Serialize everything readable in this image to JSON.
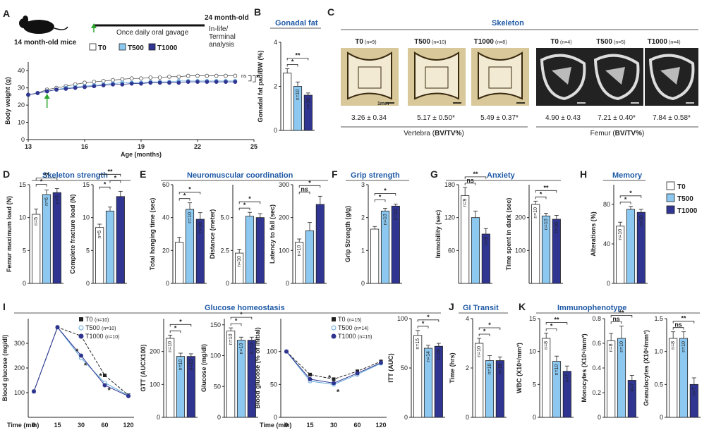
{
  "colors": {
    "T0": "#ffffff",
    "T500": "#8cc8ef",
    "T1000": "#2f3590",
    "title": "#1f5aa6",
    "sig_red": "#d8262b"
  },
  "panels": {
    "A": {
      "letter": "A",
      "mice_label": "14 month-old mice",
      "endpoint": "24 month-old",
      "gavage": "Once daily oral gavage",
      "terminal": "In-life/\nTerminal\nanalysis",
      "legend": [
        "T0",
        "T500",
        "T1000"
      ],
      "chart_data": {
        "type": "line",
        "xlabel": "Age (months)",
        "ylabel": "Body weight (g)",
        "xlim": [
          13,
          25
        ],
        "ylim": [
          0,
          45
        ],
        "xticks": [
          13,
          16,
          19,
          22,
          25
        ],
        "yticks": [
          0,
          10,
          20,
          30,
          40
        ],
        "series": [
          {
            "name": "T0",
            "x": [
              13,
              13.5,
              14,
              14.5,
              15,
              15.5,
              16,
              16.5,
              17,
              17.5,
              18,
              18.5,
              19,
              19.5,
              20,
              20.5,
              21,
              21.5,
              22,
              22.5,
              23,
              23.5,
              24
            ],
            "values": [
              26,
              27,
              29,
              30,
              31,
              32,
              33,
              33.5,
              34,
              34.5,
              35,
              35.5,
              35.5,
              36,
              36,
              36.5,
              36.5,
              37,
              37,
              37,
              37,
              37,
              37
            ]
          },
          {
            "name": "T500",
            "x": [
              13,
              13.5,
              14,
              14.5,
              15,
              15.5,
              16,
              16.5,
              17,
              17.5,
              18,
              18.5,
              19,
              19.5,
              20,
              20.5,
              21,
              21.5,
              22,
              22.5,
              23,
              23.5,
              24
            ],
            "values": [
              26,
              27,
              28,
              29,
              30,
              30.5,
              31,
              31.5,
              32,
              32.5,
              33,
              33,
              33,
              33.5,
              33.5,
              33.5,
              34,
              34,
              34,
              34,
              34,
              34,
              34
            ]
          },
          {
            "name": "T1000",
            "x": [
              13,
              13.5,
              14,
              14.5,
              15,
              15.5,
              16,
              16.5,
              17,
              17.5,
              18,
              18.5,
              19,
              19.5,
              20,
              20.5,
              21,
              21.5,
              22,
              22.5,
              23,
              23.5,
              24
            ],
            "values": [
              26,
              27,
              28,
              29,
              29.5,
              30,
              30.5,
              31,
              31.5,
              32,
              32,
              32.5,
              32.5,
              33,
              33,
              33,
              33,
              33.5,
              33.5,
              33.5,
              33.5,
              33.5,
              33.5
            ]
          }
        ],
        "annotations": [
          "ns",
          "*"
        ]
      }
    },
    "B": {
      "letter": "B",
      "title": "Gonadal fat",
      "chart_data": {
        "type": "bar",
        "ylabel": "Gonadal fat pad/BW (%)",
        "ylim": [
          0,
          4
        ],
        "yticks": [
          0,
          2,
          4
        ],
        "categories": [
          "T0",
          "T500",
          "T1000"
        ],
        "values": [
          2.6,
          2.0,
          1.6
        ],
        "errors": [
          0.2,
          0.2,
          0.1
        ],
        "n_labels": [
          "",
          "n=10",
          "n=10"
        ],
        "sig": [
          "*",
          "**"
        ]
      }
    },
    "C": {
      "letter": "C",
      "title": "Skeleton",
      "vertebra": [
        {
          "group": "T0",
          "n": "(n=9)",
          "value": "3.26 ± 0.34",
          "sig": false
        },
        {
          "group": "T500",
          "n": "(n=10)",
          "value": "5.17 ± 0.50*",
          "sig": true
        },
        {
          "group": "T1000",
          "n": "(n=8)",
          "value": "5.49 ± 0.37*",
          "sig": true
        }
      ],
      "vertebra_caption_pre": "Vertebra (",
      "vertebra_caption_bold": "BV/TV%",
      "vertebra_caption_post": ")",
      "scale_bar": "1mm",
      "femur": [
        {
          "group": "T0",
          "n": "(n=4)",
          "value": "4.90 ± 0.43",
          "sig": false
        },
        {
          "group": "T500",
          "n": "(n=5)",
          "value": "7.21 ± 0.40*",
          "sig": true
        },
        {
          "group": "T1000",
          "n": "(n=4)",
          "value": "7.84 ± 0.58*",
          "sig": true
        }
      ],
      "femur_caption_pre": "Femur (",
      "femur_caption_bold": "BV/TV%",
      "femur_caption_post": ")"
    },
    "D": {
      "letter": "D",
      "title": "Skeleton strength",
      "charts": [
        {
          "ylabel": "Femur maximum load (N)",
          "ylim": [
            0,
            15
          ],
          "yticks": [
            0,
            5,
            10,
            15
          ],
          "values": [
            10.5,
            13.5,
            13.8
          ],
          "errors": [
            0.8,
            0.7,
            0.6
          ],
          "n_labels": [
            "n=5",
            "n=6",
            "n=5"
          ],
          "sig": [
            "*",
            "**"
          ]
        },
        {
          "ylabel": "Complete fracture load (N)",
          "ylim": [
            0,
            15
          ],
          "yticks": [
            0,
            5,
            10,
            15
          ],
          "values": [
            8.5,
            11,
            13.2
          ],
          "errors": [
            0.5,
            0.6,
            0.8
          ],
          "n_labels": [
            "n=5",
            "",
            ""
          ],
          "sig": [
            "*",
            "*",
            "**"
          ]
        }
      ]
    },
    "E": {
      "letter": "E",
      "title": "Neuromuscular coordination",
      "charts": [
        {
          "ylabel": "Total hanging time (sec)",
          "ylim": [
            0,
            60
          ],
          "yticks": [
            0,
            20,
            40,
            60
          ],
          "values": [
            25,
            45,
            39
          ],
          "errors": [
            3,
            4,
            4
          ],
          "n_labels": [
            "",
            "n=10",
            "n=10"
          ],
          "sig": [
            "*",
            "*"
          ]
        },
        {
          "ylabel": "Distance (meter)",
          "ylim": [
            0,
            7.5
          ],
          "yticks": [
            0,
            2.5,
            5.0
          ],
          "ytick_labels": [
            "0",
            "2.5",
            "5.0"
          ],
          "values": [
            2.3,
            5.1,
            5.0
          ],
          "errors": [
            0.3,
            0.3,
            0.3
          ],
          "n_labels": [
            "n=10",
            "",
            ""
          ],
          "sig": [
            "*",
            "*"
          ]
        },
        {
          "ylabel": "Latency to fall (sec)",
          "ylim": [
            0,
            300
          ],
          "yticks": [
            0,
            100,
            200,
            300
          ],
          "values": [
            125,
            160,
            240
          ],
          "errors": [
            10,
            25,
            25
          ],
          "n_labels": [
            "n=10",
            "",
            ""
          ],
          "sig": [
            "ns",
            "*"
          ]
        }
      ]
    },
    "F": {
      "letter": "F",
      "title": "Grip strength",
      "chart_data": {
        "type": "bar",
        "ylabel": "Grip Strength (g/g)",
        "ylim": [
          0,
          3
        ],
        "yticks": [
          0,
          1,
          2,
          3
        ],
        "values": [
          1.65,
          2.2,
          2.35
        ],
        "errors": [
          0.08,
          0.08,
          0.06
        ],
        "n_labels": [
          "",
          "n=10",
          "n=10"
        ],
        "sig": [
          "*",
          "*"
        ]
      }
    },
    "G": {
      "letter": "G",
      "title": "Anxiety",
      "charts": [
        {
          "ylabel": "Immobility (sec)",
          "ylim": [
            0,
            180
          ],
          "yticks": [
            60,
            120,
            180
          ],
          "values": [
            160,
            120,
            90
          ],
          "errors": [
            15,
            12,
            10
          ],
          "n_labels": [
            "n=9",
            "",
            "n=9"
          ],
          "sig": [
            "ns",
            "**"
          ]
        },
        {
          "ylabel": "Time spent in dark (sec)",
          "ylim": [
            0,
            300
          ],
          "yticks": [
            100,
            200
          ],
          "values": [
            240,
            205,
            195
          ],
          "errors": [
            10,
            8,
            12
          ],
          "n_labels": [
            "n=10",
            "n=10",
            "n=10"
          ],
          "sig": [
            "*",
            "**"
          ]
        }
      ]
    },
    "H": {
      "letter": "H",
      "title": "Memory",
      "chart_data": {
        "type": "bar",
        "ylabel": "Alterations (%)",
        "ylim": [
          0,
          100
        ],
        "yticks": [
          0,
          40,
          80
        ],
        "values": [
          58,
          75,
          72
        ],
        "errors": [
          4,
          3,
          3
        ],
        "n_labels": [
          "n=10",
          "",
          "n=10"
        ],
        "sig": [
          "*",
          "*"
        ]
      },
      "legend": [
        "T0",
        "T500",
        "T1000"
      ]
    },
    "I": {
      "letter": "I",
      "title": "Glucose homeostasis",
      "gtt_line": {
        "xlabel": "Time (min)",
        "ylabel": "Blood glucose (mg/dl)",
        "xticks": [
          0,
          15,
          30,
          60,
          120
        ],
        "ylim": [
          0,
          400
        ],
        "yticks": [
          100,
          200,
          300
        ],
        "legend": [
          {
            "name": "T0",
            "n": "(n=10)"
          },
          {
            "name": "T500",
            "n": "(n=10)"
          },
          {
            "name": "T1000",
            "n": "(n=10)"
          }
        ],
        "series": [
          {
            "name": "T0",
            "values": [
              105,
              365,
              330,
              170,
              90
            ]
          },
          {
            "name": "T500",
            "values": [
              105,
              365,
              240,
              140,
              88
            ]
          },
          {
            "name": "T1000",
            "values": [
              105,
              365,
              250,
              130,
              86
            ]
          }
        ],
        "sig": [
          "*",
          "*",
          "*",
          "*"
        ]
      },
      "gtt_bar": {
        "ylabel": "GTT (AUCX100)",
        "ylim": [
          0,
          300
        ],
        "yticks": [
          0,
          100,
          200
        ],
        "values": [
          240,
          185,
          185
        ],
        "errors": [
          10,
          10,
          8
        ],
        "n_labels": [
          "n=10",
          "n=10",
          "n=10"
        ],
        "sig": [
          "*",
          "*"
        ]
      },
      "fasting_bar": {
        "ylabel": "Glucose (mg/dl)",
        "ylim": [
          0,
          160
        ],
        "yticks": [
          0,
          50,
          100,
          150
        ],
        "values": [
          140,
          125,
          125
        ],
        "errors": [
          5,
          5,
          5
        ],
        "n_labels": [
          "n=10",
          "n=10",
          "n=10"
        ],
        "sig": [
          "*",
          "*"
        ]
      },
      "itt_line": {
        "xlabel": "Time (min)",
        "ylabel": "Blood glucose (% of initial)",
        "xticks": [
          0,
          15,
          30,
          60,
          120
        ],
        "ylim": [
          0,
          150
        ],
        "yticks": [
          0,
          50,
          100
        ],
        "legend": [
          {
            "name": "T0",
            "n": "(n=15)"
          },
          {
            "name": "T500",
            "n": "(n=14)"
          },
          {
            "name": "T1000",
            "n": "(n=15)"
          }
        ],
        "series": [
          {
            "name": "T0",
            "values": [
              100,
              65,
              58,
              70,
              85
            ]
          },
          {
            "name": "T500",
            "values": [
              100,
              55,
              50,
              65,
              82
            ]
          },
          {
            "name": "T1000",
            "values": [
              100,
              58,
              52,
              67,
              83
            ]
          }
        ],
        "sig": [
          "*",
          "*"
        ]
      },
      "itt_bar": {
        "ylabel": "ITT (AUC)",
        "ylim": [
          0,
          100
        ],
        "yticks": [
          0,
          50,
          100
        ],
        "values": [
          83,
          70,
          72
        ],
        "errors": [
          5,
          3,
          3
        ],
        "n_labels": [
          "n=15",
          "n=14",
          "n=15"
        ],
        "sig": [
          "*",
          "*"
        ]
      }
    },
    "J": {
      "letter": "J",
      "title": "GI Transit",
      "chart_data": {
        "type": "bar",
        "ylabel": "Time (hrs)",
        "ylim": [
          0,
          4
        ],
        "yticks": [
          0,
          2,
          4
        ],
        "values": [
          3.0,
          2.3,
          2.3
        ],
        "errors": [
          0.2,
          0.2,
          0.15
        ],
        "n_labels": [
          "n=10",
          "n=10",
          "n=10"
        ],
        "sig": [
          "*",
          "*"
        ]
      }
    },
    "K": {
      "letter": "K",
      "title": "Immunophenotype",
      "charts": [
        {
          "ylabel": "WBC (X10⁶/mm³)",
          "ylim": [
            0,
            15
          ],
          "yticks": [
            0,
            5,
            10,
            15
          ],
          "values": [
            12,
            8.5,
            7
          ],
          "errors": [
            0.8,
            0.8,
            0.8
          ],
          "n_labels": [
            "n=8",
            "n=10",
            "n=7"
          ],
          "sig": [
            "*",
            "**"
          ]
        },
        {
          "ylabel": "Monocytes (X10⁶/mm³)",
          "ylim": [
            0,
            0.8
          ],
          "yticks": [
            0,
            0.2,
            0.4,
            0.6,
            0.8
          ],
          "ytick_labels": [
            "0",
            "0.2",
            "0.4",
            "0.6",
            "0.8"
          ],
          "values": [
            0.62,
            0.64,
            0.3
          ],
          "errors": [
            0.06,
            0.1,
            0.04
          ],
          "n_labels": [
            "n=8",
            "n=10",
            "n=7"
          ],
          "sig": [
            "ns",
            "**"
          ]
        },
        {
          "ylabel": "Granulocytes (X10⁶/mm³)",
          "ylim": [
            0,
            1.5
          ],
          "yticks": [
            0,
            0.5,
            1.0,
            1.5
          ],
          "ytick_labels": [
            "0",
            "0.5",
            "1.0",
            "1.5"
          ],
          "values": [
            1.2,
            1.2,
            0.5
          ],
          "errors": [
            0.1,
            0.1,
            0.1
          ],
          "n_labels": [
            "n=8",
            "n=10",
            "n=7"
          ],
          "sig": [
            "ns",
            "**"
          ]
        }
      ]
    }
  }
}
